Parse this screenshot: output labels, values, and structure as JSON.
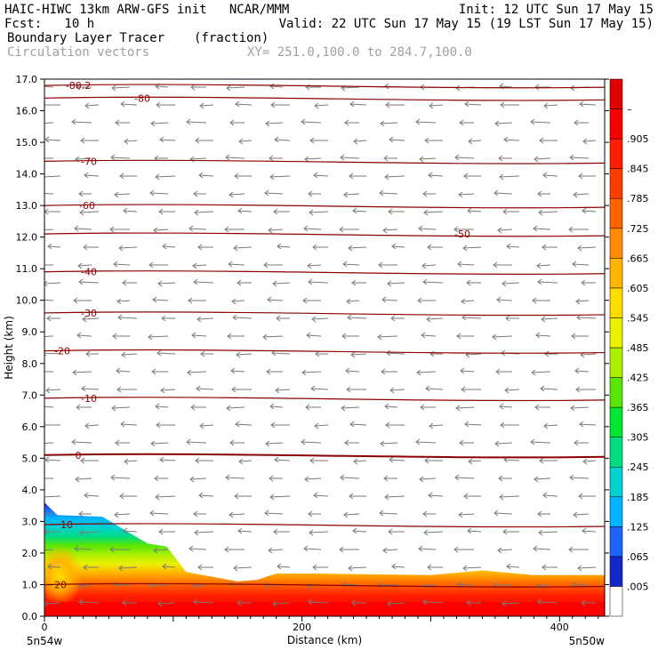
{
  "header": {
    "left_line1": "HAIC-HIWC 13km ARW-GFS init   NCAR/MMM",
    "left_line2": "Fcst:   10 h",
    "field_name": "Boundary Layer Tracer",
    "field_units": "(fraction)",
    "vector_label": "Circulation vectors",
    "xy_range": "XY= 251.0,100.0 to 284.7,100.0",
    "init_line": "Init: 12 UTC Sun 17 May 15",
    "valid_line": "Valid: 22 UTC Sun 17 May 15 (19 LST Sun 17 May 15)"
  },
  "chart_data": {
    "type": "heatmap",
    "title": "Boundary Layer Tracer",
    "xlabel": "Distance (km)",
    "ylabel": "Height (km)",
    "xlim": [
      0,
      435
    ],
    "ylim": [
      0.0,
      17.0
    ],
    "x_ticks": [
      0,
      200,
      400
    ],
    "y_ticks": [
      "0.0",
      "1.0",
      "2.0",
      "3.0",
      "4.0",
      "5.0",
      "6.0",
      "7.0",
      "8.0",
      "9.0",
      "10.0",
      "11.0",
      "12.0",
      "13.0",
      "14.0",
      "15.0",
      "16.0",
      "17.0"
    ],
    "x_left_end_label": "5n54w",
    "x_right_end_label": "5n50w",
    "colorbar": {
      "labels": [
        ".005",
        ".065",
        ".125",
        ".185",
        ".245",
        ".305",
        ".365",
        ".425",
        ".485",
        ".545",
        ".605",
        ".665",
        ".725",
        ".785",
        ".845",
        ".905",
        "–"
      ],
      "colors": [
        "#ffffff",
        "#1428c8",
        "#1e64ff",
        "#00b4ff",
        "#00d2d2",
        "#00dc82",
        "#00e632",
        "#5ae600",
        "#aaf000",
        "#ebf000",
        "#ffdc00",
        "#ffb400",
        "#ff8c00",
        "#ff6400",
        "#ff3c00",
        "#ff1e00",
        "#fa0000",
        "#e10000"
      ]
    },
    "temperature_contours": [
      {
        "label": "-80.2",
        "height": 16.8
      },
      {
        "label": "-80",
        "height": 16.4
      },
      {
        "label": "-70",
        "height": 14.4
      },
      {
        "label": "-60",
        "height": 13.0
      },
      {
        "label": "-50",
        "height": 12.1
      },
      {
        "label": "-40",
        "height": 10.9
      },
      {
        "label": "-30",
        "height": 9.6
      },
      {
        "label": "-20",
        "height": 8.4
      },
      {
        "label": "-10",
        "height": 6.9
      },
      {
        "label": "0",
        "height": 5.1
      },
      {
        "label": "10",
        "height": 2.9
      },
      {
        "label": "20",
        "height": 1.0
      }
    ],
    "tracer_top_profile": [
      {
        "x": 0,
        "z": 3.6
      },
      {
        "x": 10,
        "z": 3.2
      },
      {
        "x": 45,
        "z": 3.15
      },
      {
        "x": 80,
        "z": 2.3
      },
      {
        "x": 95,
        "z": 2.2
      },
      {
        "x": 110,
        "z": 1.4
      },
      {
        "x": 150,
        "z": 1.1
      },
      {
        "x": 165,
        "z": 1.15
      },
      {
        "x": 180,
        "z": 1.35
      },
      {
        "x": 210,
        "z": 1.35
      },
      {
        "x": 300,
        "z": 1.3
      },
      {
        "x": 340,
        "z": 1.45
      },
      {
        "x": 380,
        "z": 1.3
      },
      {
        "x": 435,
        "z": 1.3
      }
    ]
  }
}
